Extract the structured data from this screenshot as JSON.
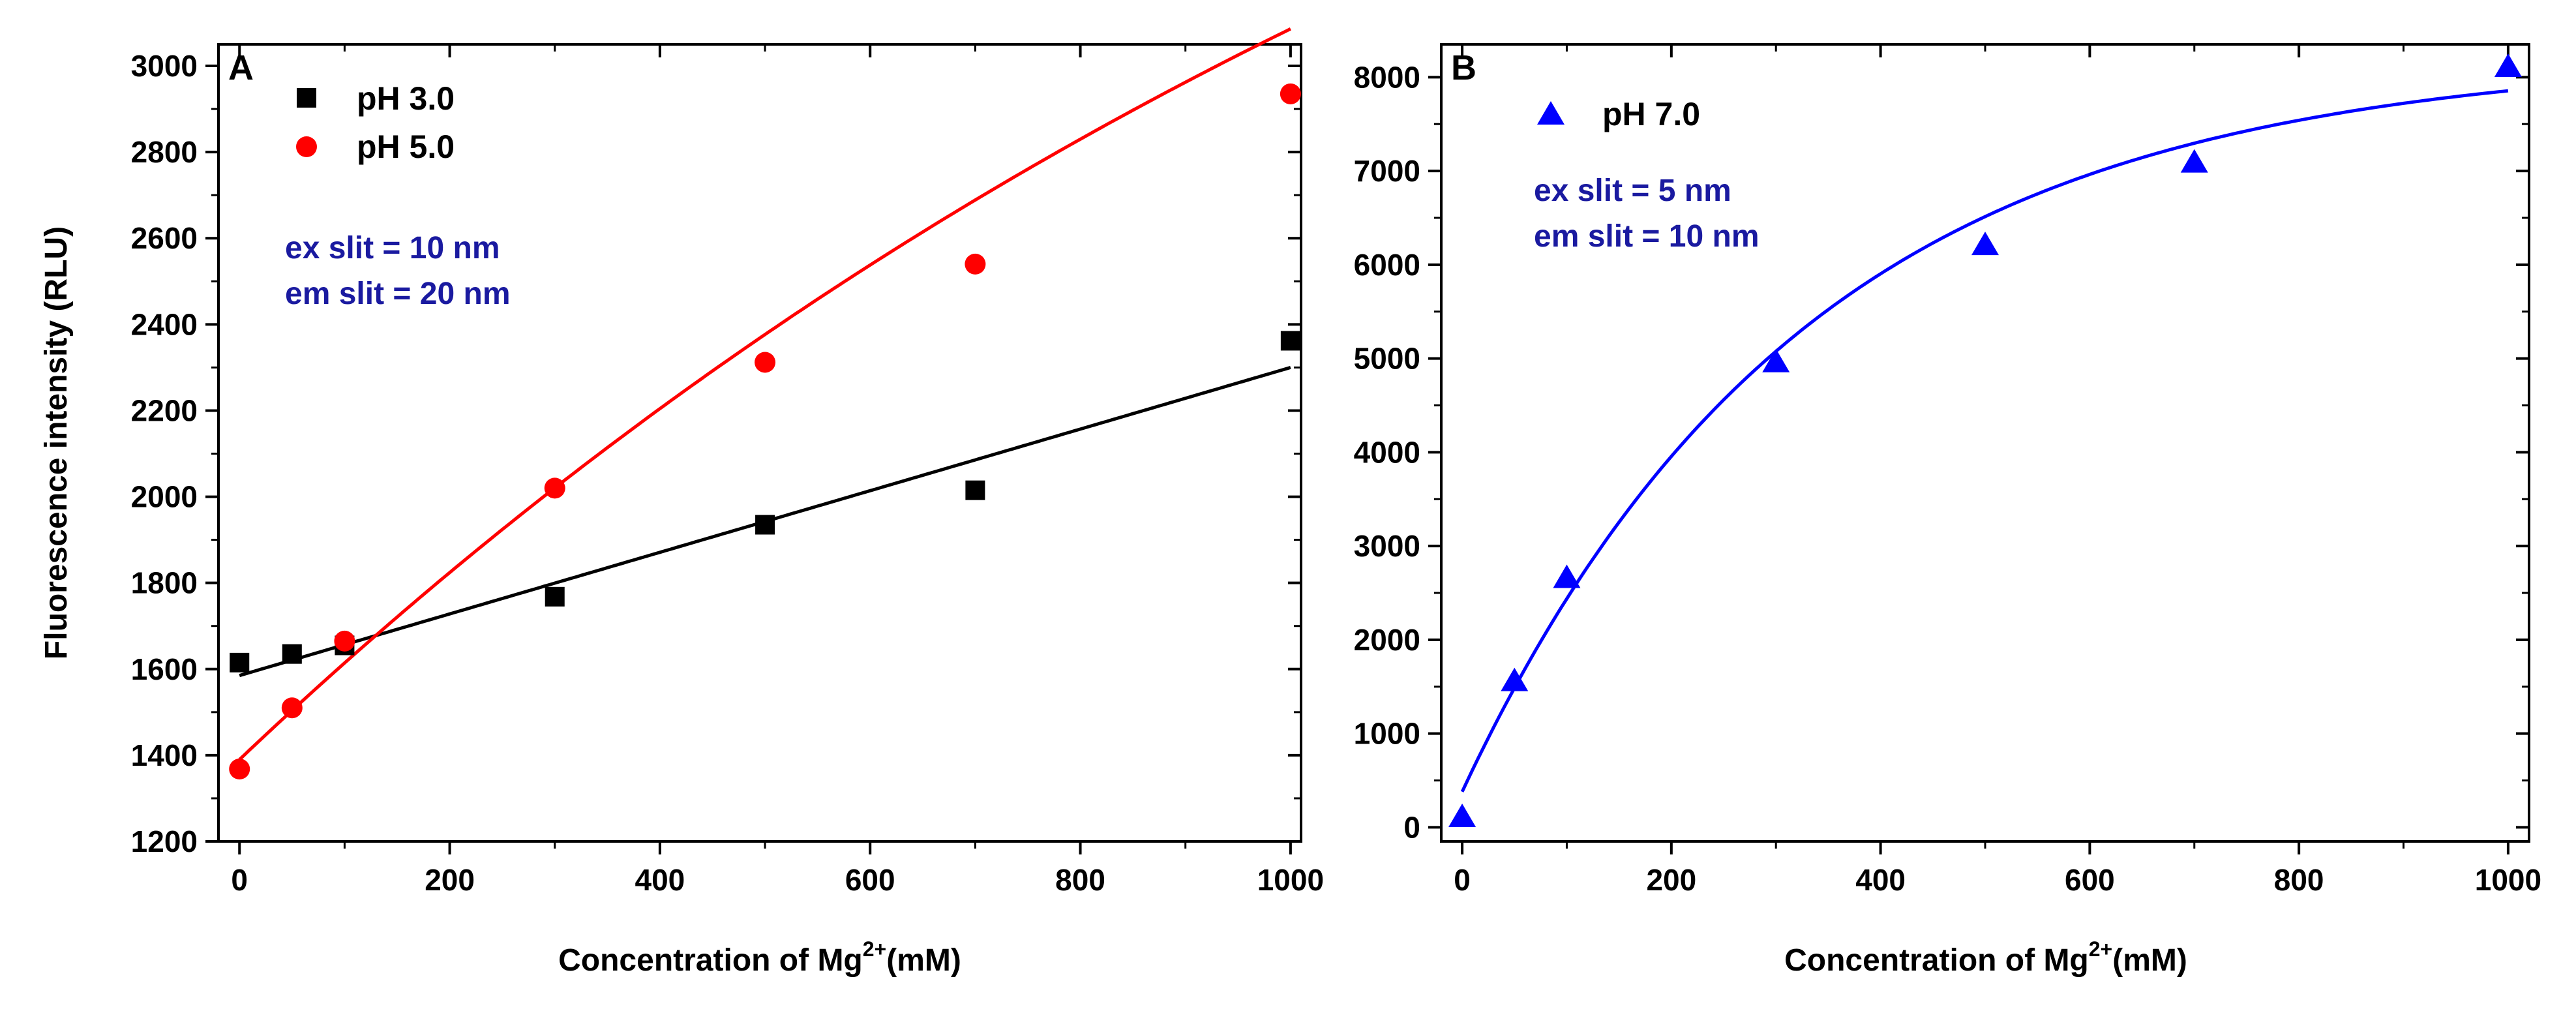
{
  "chart_data": [
    {
      "type": "scatter",
      "panel_label": "A",
      "xlabel_prefix": "Concentration of Mg",
      "xlabel_sup": "2+",
      "xlabel_suffix": "(mM)",
      "ylabel": "Fluorescence intensity (RLU)",
      "xlim": [
        -20,
        1010
      ],
      "ylim": [
        1200,
        3050
      ],
      "xticks": [
        0,
        200,
        400,
        600,
        800,
        1000
      ],
      "yticks": [
        1200,
        1400,
        1600,
        1800,
        2000,
        2200,
        2400,
        2600,
        2800,
        3000
      ],
      "legend_position": "top-left",
      "series": [
        {
          "name": "pH 3.0",
          "marker": "square",
          "color": "#000000",
          "x": [
            0,
            50,
            100,
            300,
            500,
            700,
            1000
          ],
          "y": [
            1615,
            1635,
            1655,
            1768,
            1935,
            2015,
            2362
          ],
          "fit": {
            "kind": "linear",
            "intercept": 1585,
            "slope": 0.715
          }
        },
        {
          "name": "pH 5.0",
          "marker": "circle",
          "color": "#ff0000",
          "x": [
            0,
            50,
            100,
            300,
            500,
            700,
            1000
          ],
          "y": [
            1368,
            1510,
            1665,
            2020,
            2312,
            2540,
            2935
          ],
          "fit": {
            "kind": "exp_rise",
            "y0": 1390,
            "A": 3510,
            "k": 0.00066
          }
        }
      ],
      "annotations": [
        "ex slit = 10 nm",
        "em slit = 20 nm"
      ]
    },
    {
      "type": "scatter",
      "panel_label": "B",
      "xlabel_prefix": "Concentration of Mg",
      "xlabel_sup": "2+",
      "xlabel_suffix": "(mM)",
      "ylabel": "",
      "xlim": [
        -20,
        1020
      ],
      "ylim": [
        -150,
        8350
      ],
      "xticks": [
        0,
        200,
        400,
        600,
        800,
        1000
      ],
      "yticks": [
        0,
        1000,
        2000,
        3000,
        4000,
        5000,
        6000,
        7000,
        8000
      ],
      "legend_position": "top-left",
      "series": [
        {
          "name": "pH 7.0",
          "marker": "triangle",
          "color": "#0000ff",
          "x": [
            0,
            50,
            100,
            300,
            500,
            700,
            1000
          ],
          "y": [
            100,
            1550,
            2650,
            4950,
            6200,
            7080,
            8100
          ],
          "fit": {
            "kind": "exp_rise",
            "y0": 380,
            "A": 7850,
            "k": 0.00304
          }
        }
      ],
      "annotations": [
        "ex slit = 5 nm",
        "em slit = 10 nm"
      ]
    }
  ]
}
